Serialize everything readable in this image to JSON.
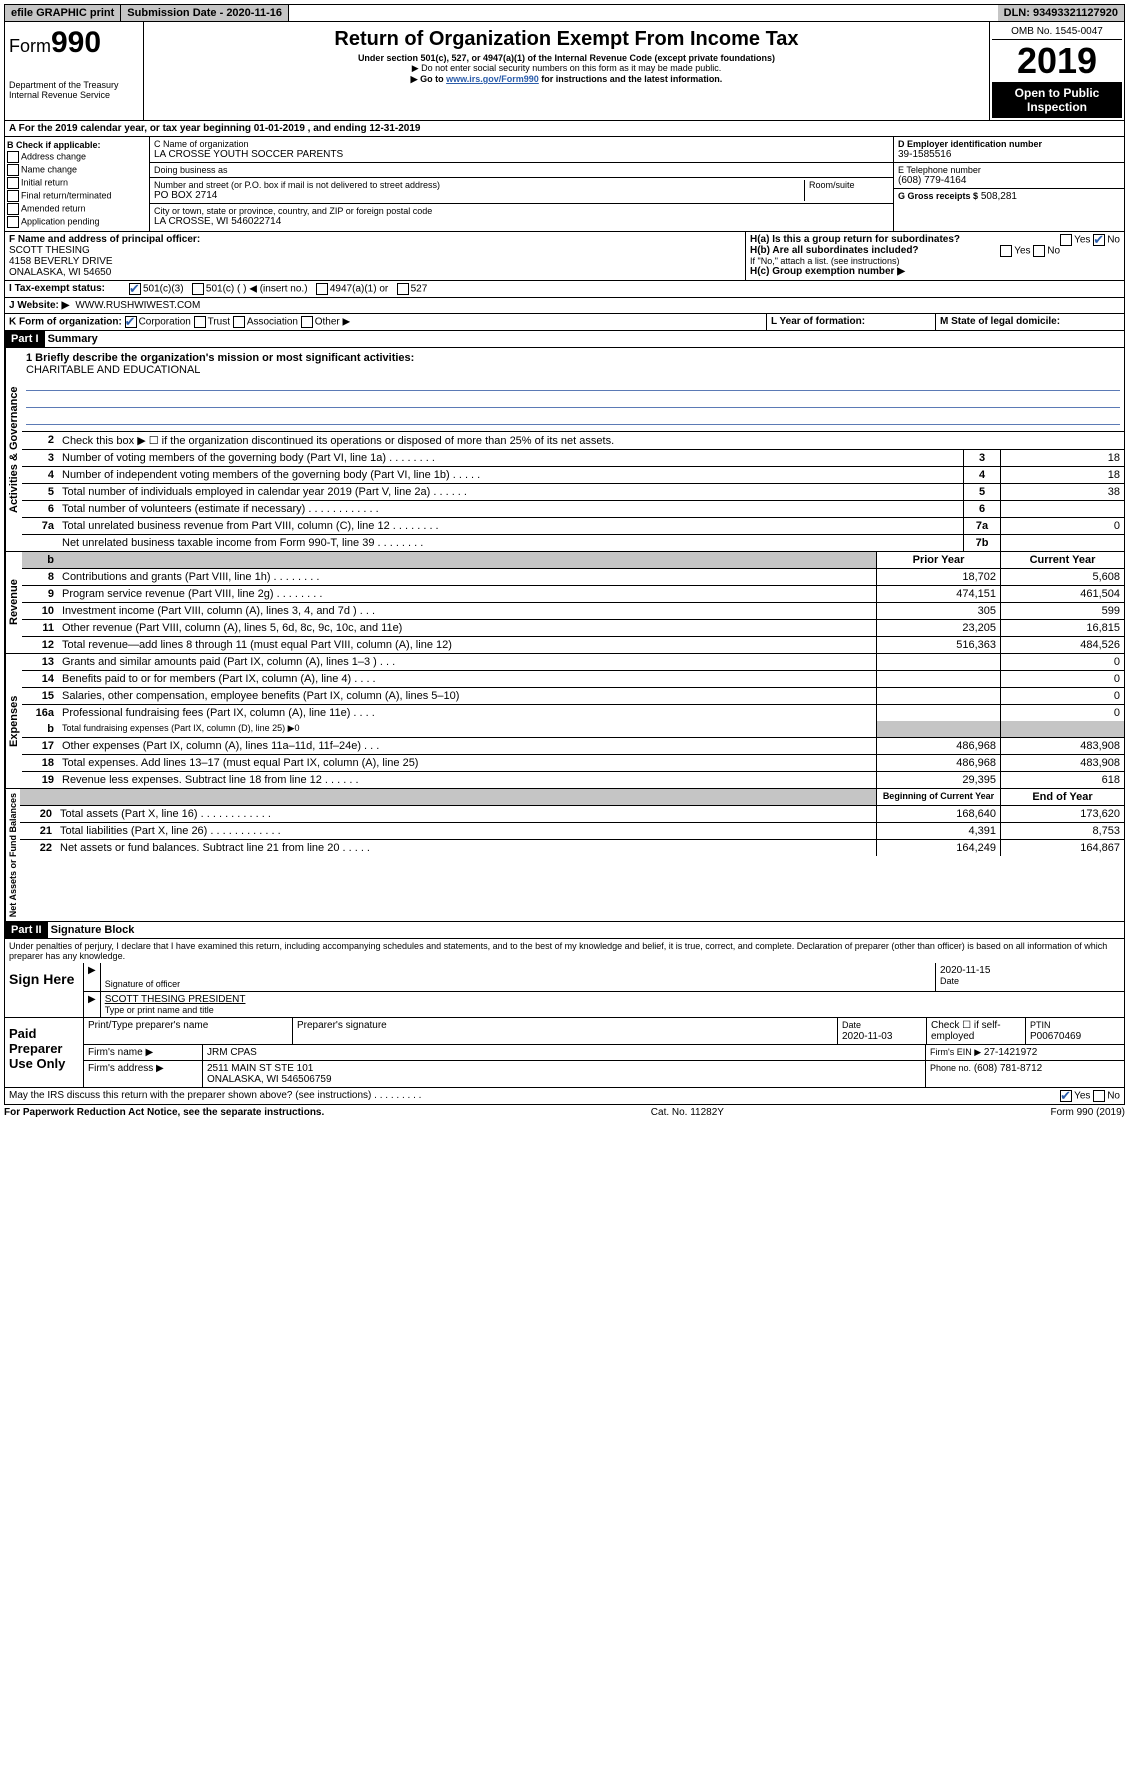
{
  "topbar": {
    "efile": "efile GRAPHIC print",
    "subdate_label": "Submission Date - 2020-11-16",
    "dln": "DLN: 93493321127920"
  },
  "header": {
    "form_word": "Form",
    "form_num": "990",
    "dept": "Department of the Treasury",
    "irs": "Internal Revenue Service",
    "title": "Return of Organization Exempt From Income Tax",
    "sub1": "Under section 501(c), 527, or 4947(a)(1) of the Internal Revenue Code (except private foundations)",
    "sub2": "▶ Do not enter social security numbers on this form as it may be made public.",
    "sub3_pre": "▶ Go to ",
    "sub3_link": "www.irs.gov/Form990",
    "sub3_post": " for instructions and the latest information.",
    "omb": "OMB No. 1545-0047",
    "year": "2019",
    "open": "Open to Public Inspection"
  },
  "sectionA": "For the 2019 calendar year, or tax year beginning 01-01-2019    , and ending 12-31-2019",
  "boxB": {
    "title": "B Check if applicable:",
    "items": [
      "Address change",
      "Name change",
      "Initial return",
      "Final return/terminated",
      "Amended return",
      "Application pending"
    ]
  },
  "boxC": {
    "label_name": "C Name of organization",
    "name": "LA CROSSE YOUTH SOCCER PARENTS",
    "dba_label": "Doing business as",
    "street_label": "Number and street (or P.O. box if mail is not delivered to street address)",
    "room_label": "Room/suite",
    "street": "PO BOX 2714",
    "city_label": "City or town, state or province, country, and ZIP or foreign postal code",
    "city": "LA CROSSE, WI  546022714"
  },
  "boxD": {
    "label": "D Employer identification number",
    "value": "39-1585516"
  },
  "boxE": {
    "label": "E Telephone number",
    "value": "(608) 779-4164"
  },
  "boxG": {
    "label": "G Gross receipts $",
    "value": "508,281"
  },
  "boxF": {
    "label": "F  Name and address of principal officer:",
    "line1": "SCOTT THESING",
    "line2": "4158 BEVERLY DRIVE",
    "line3": "ONALASKA, WI  54650"
  },
  "boxH": {
    "ha": "H(a)  Is this a group return for subordinates?",
    "hb": "H(b)  Are all subordinates included?",
    "hb_note": "If \"No,\" attach a list. (see instructions)",
    "hc": "H(c)  Group exemption number ▶",
    "yes": "Yes",
    "no": "No"
  },
  "taxI": {
    "label": "Tax-exempt status:",
    "opts": [
      "501(c)(3)",
      "501(c) (   ) ◀ (insert no.)",
      "4947(a)(1) or",
      "527"
    ]
  },
  "websiteJ": {
    "label": "Website: ▶",
    "value": "WWW.RUSHWIWEST.COM"
  },
  "rowK": {
    "label": "K Form of organization:",
    "opts": [
      "Corporation",
      "Trust",
      "Association",
      "Other ▶"
    ]
  },
  "rowL": "L Year of formation:",
  "rowM": "M State of legal domicile:",
  "part1": {
    "tag": "Part I",
    "title": "Summary"
  },
  "summary": {
    "line1_label": "1  Briefly describe the organization's mission or most significant activities:",
    "line1_val": "CHARITABLE AND EDUCATIONAL",
    "line2": "Check this box ▶ ☐  if the organization discontinued its operations or disposed of more than 25% of its net assets.",
    "rows_top": [
      {
        "n": "3",
        "t": "Number of voting members of the governing body (Part VI, line 1a)  .    .    .    .    .    .    .    .",
        "box": "3",
        "v": "18"
      },
      {
        "n": "4",
        "t": "Number of independent voting members of the governing body (Part VI, line 1b)  .    .    .    .    .",
        "box": "4",
        "v": "18"
      },
      {
        "n": "5",
        "t": "Total number of individuals employed in calendar year 2019 (Part V, line 2a)  .    .    .    .    .    .",
        "box": "5",
        "v": "38"
      },
      {
        "n": "6",
        "t": "Total number of volunteers (estimate if necessary)  .    .    .    .    .    .    .    .    .    .    .    .",
        "box": "6",
        "v": ""
      },
      {
        "n": "7a",
        "t": "Total unrelated business revenue from Part VIII, column (C), line 12 .    .    .    .    .    .    .    .",
        "box": "7a",
        "v": "0"
      },
      {
        "n": "",
        "t": "Net unrelated business taxable income from Form 990-T, line 39  .    .    .    .    .    .    .    .",
        "box": "7b",
        "v": ""
      }
    ],
    "col_head": {
      "b": "b",
      "prior": "Prior Year",
      "curr": "Current Year"
    },
    "revenue": [
      {
        "n": "8",
        "t": "Contributions and grants (Part VIII, line 1h)  .    .    .    .    .    .    .    .",
        "p": "18,702",
        "c": "5,608"
      },
      {
        "n": "9",
        "t": "Program service revenue (Part VIII, line 2g)  .    .    .    .    .    .    .    .",
        "p": "474,151",
        "c": "461,504"
      },
      {
        "n": "10",
        "t": "Investment income (Part VIII, column (A), lines 3, 4, and 7d )  .    .    .",
        "p": "305",
        "c": "599"
      },
      {
        "n": "11",
        "t": "Other revenue (Part VIII, column (A), lines 5, 6d, 8c, 9c, 10c, and 11e)",
        "p": "23,205",
        "c": "16,815"
      },
      {
        "n": "12",
        "t": "Total revenue—add lines 8 through 11 (must equal Part VIII, column (A), line 12)",
        "p": "516,363",
        "c": "484,526"
      }
    ],
    "expenses": [
      {
        "n": "13",
        "t": "Grants and similar amounts paid (Part IX, column (A), lines 1–3 )  .    .    .",
        "p": "",
        "c": "0"
      },
      {
        "n": "14",
        "t": "Benefits paid to or for members (Part IX, column (A), line 4)  .    .    .    .",
        "p": "",
        "c": "0"
      },
      {
        "n": "15",
        "t": "Salaries, other compensation, employee benefits (Part IX, column (A), lines 5–10)",
        "p": "",
        "c": "0"
      },
      {
        "n": "16a",
        "t": "Professional fundraising fees (Part IX, column (A), line 11e)  .    .    .    .",
        "p": "",
        "c": "0"
      }
    ],
    "line_b": {
      "n": "b",
      "t": "Total fundraising expenses (Part IX, column (D), line 25) ▶0"
    },
    "expenses2": [
      {
        "n": "17",
        "t": "Other expenses (Part IX, column (A), lines 11a–11d, 11f–24e)  .    .    .",
        "p": "486,968",
        "c": "483,908"
      },
      {
        "n": "18",
        "t": "Total expenses. Add lines 13–17 (must equal Part IX, column (A), line 25)",
        "p": "486,968",
        "c": "483,908"
      },
      {
        "n": "19",
        "t": "Revenue less expenses. Subtract line 18 from line 12 .    .    .    .    .    .",
        "p": "29,395",
        "c": "618"
      }
    ],
    "net_head": {
      "prior": "Beginning of Current Year",
      "curr": "End of Year"
    },
    "net": [
      {
        "n": "20",
        "t": "Total assets (Part X, line 16)  .    .    .    .    .    .    .    .    .    .    .    .",
        "p": "168,640",
        "c": "173,620"
      },
      {
        "n": "21",
        "t": "Total liabilities (Part X, line 26) .    .    .    .    .    .    .    .    .    .    .    .",
        "p": "4,391",
        "c": "8,753"
      },
      {
        "n": "22",
        "t": "Net assets or fund balances. Subtract line 21 from line 20 .    .    .    .    .",
        "p": "164,249",
        "c": "164,867"
      }
    ],
    "vert_gov": "Activities & Governance",
    "vert_rev": "Revenue",
    "vert_exp": "Expenses",
    "vert_net": "Net Assets or Fund Balances"
  },
  "part2": {
    "tag": "Part II",
    "title": "Signature Block"
  },
  "penalty": "Under penalties of perjury, I declare that I have examined this return, including accompanying schedules and statements, and to the best of my knowledge and belief, it is true, correct, and complete. Declaration of preparer (other than officer) is based on all information of which preparer has any knowledge.",
  "sign": {
    "left": "Sign Here",
    "sig_officer": "Signature of officer",
    "date": "2020-11-15",
    "date_label": "Date",
    "name": "SCOTT THESING PRESIDENT",
    "name_label": "Type or print name and title"
  },
  "paid": {
    "left": "Paid Preparer Use Only",
    "h1": "Print/Type preparer's name",
    "h2": "Preparer's signature",
    "h3_label": "Date",
    "h3": "2020-11-03",
    "h4_label": "Check ☐ if self-employed",
    "h5_label": "PTIN",
    "h5": "P00670469",
    "firm_label": "Firm's name    ▶",
    "firm": "JRM CPAS",
    "ein_label": "Firm's EIN ▶",
    "ein": "27-1421972",
    "addr_label": "Firm's address ▶",
    "addr1": "2511 MAIN ST STE 101",
    "addr2": "ONALASKA, WI  546506759",
    "phone_label": "Phone no.",
    "phone": "(608) 781-8712"
  },
  "discuss": "May the IRS discuss this return with the preparer shown above? (see instructions)   .    .    .    .    .    .    .    .    .",
  "footer": {
    "left": "For Paperwork Reduction Act Notice, see the separate instructions.",
    "mid": "Cat. No. 11282Y",
    "right": "Form 990 (2019)"
  }
}
